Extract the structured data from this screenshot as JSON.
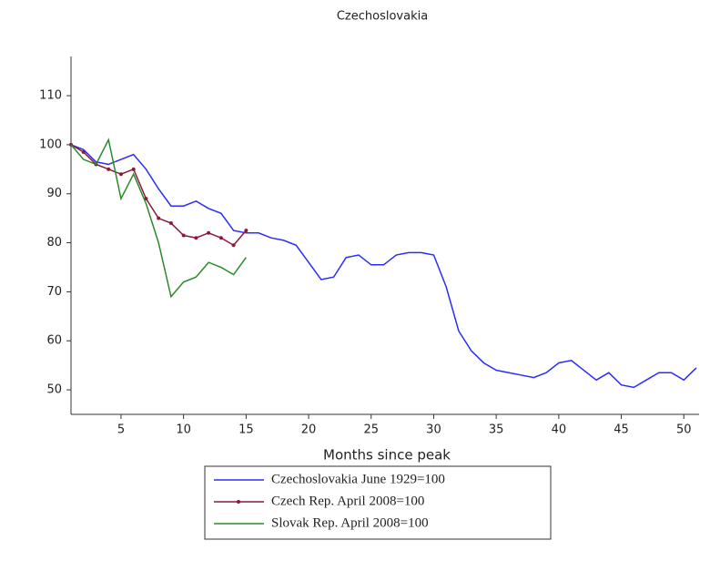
{
  "chart_data": {
    "type": "line",
    "title": "Czechoslovakia",
    "x_label": "Months since peak",
    "x": [
      1,
      2,
      3,
      4,
      5,
      6,
      7,
      8,
      9,
      10,
      11,
      12,
      13,
      14,
      15,
      16,
      17,
      18,
      19,
      20,
      21,
      22,
      23,
      24,
      25,
      26,
      27,
      28,
      29,
      30,
      31,
      32,
      33,
      34,
      35,
      36,
      37,
      38,
      39,
      40,
      41,
      42,
      43,
      44,
      45,
      46,
      47,
      48,
      49,
      50,
      51
    ],
    "xlim": [
      1,
      51
    ],
    "xticks": [
      5,
      10,
      15,
      20,
      25,
      30,
      35,
      40,
      45,
      50
    ],
    "ylim": [
      45,
      118
    ],
    "yticks": [
      50,
      60,
      70,
      80,
      90,
      100,
      110
    ],
    "grid": false,
    "series": [
      {
        "name": "Czechoslovakia June 1929=100",
        "color": "#2b2bff",
        "marker": false,
        "values": [
          100,
          99,
          96.5,
          96,
          97,
          98,
          95,
          91,
          87.5,
          87.5,
          88.5,
          87,
          86,
          82.5,
          82,
          82,
          81,
          80.5,
          79.5,
          76,
          72.5,
          73,
          77,
          77.5,
          75.5,
          75.5,
          77.5,
          78,
          78,
          77.5,
          71,
          62,
          58,
          55.5,
          54,
          53.5,
          53,
          52.5,
          53.5,
          55.5,
          56,
          54,
          52,
          53.5,
          51,
          50.5,
          52,
          53.5,
          53.5,
          52,
          54.5
        ]
      },
      {
        "name": "Czech Rep. April 2008=100",
        "color": "#8b1a3a",
        "marker": true,
        "values": [
          100,
          98.5,
          96,
          95,
          94,
          95,
          89,
          85,
          84,
          81.5,
          81,
          82,
          81,
          79.5,
          82.5,
          null,
          null,
          null,
          null,
          null,
          null,
          null,
          null,
          null,
          null,
          null,
          null,
          null,
          null,
          null,
          null,
          null,
          null,
          null,
          null,
          null,
          null,
          null,
          null,
          null,
          null,
          null,
          null,
          null,
          null,
          null,
          null,
          null,
          null,
          null,
          null
        ]
      },
      {
        "name": "Slovak Rep. April 2008=100",
        "color": "#2a8a2a",
        "marker": false,
        "values": [
          100,
          97,
          96,
          101,
          89,
          94,
          88,
          80,
          69,
          72,
          73,
          76,
          75,
          73.5,
          77,
          null,
          null,
          null,
          null,
          null,
          null,
          null,
          null,
          null,
          null,
          null,
          null,
          null,
          null,
          null,
          null,
          null,
          null,
          null,
          null,
          null,
          null,
          null,
          null,
          null,
          null,
          null,
          null,
          null,
          null,
          null,
          null,
          null,
          null,
          null,
          null
        ]
      }
    ]
  }
}
